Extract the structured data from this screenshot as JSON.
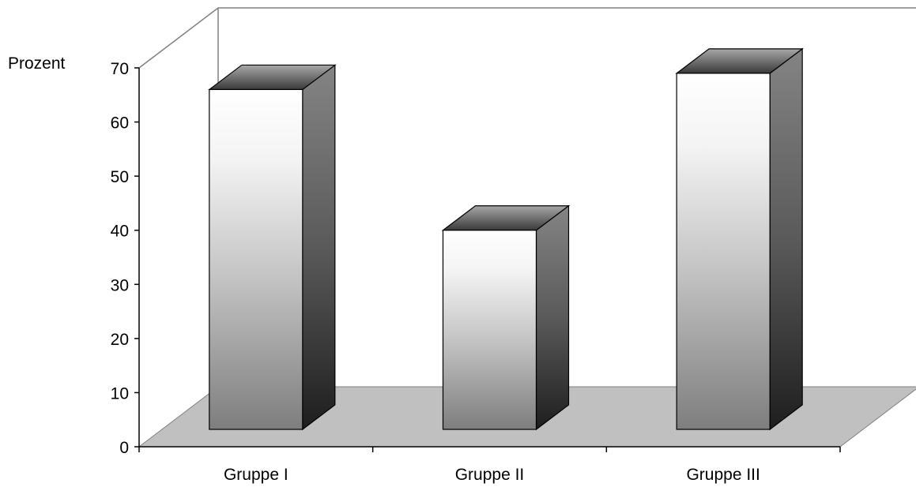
{
  "chart_data": {
    "type": "bar",
    "categories": [
      "Gruppe I",
      "Gruppe II",
      "Gruppe III"
    ],
    "values": [
      66,
      40,
      69
    ],
    "ylabel": "Prozent",
    "ylim": [
      0,
      70
    ],
    "yticks": [
      0,
      10,
      20,
      30,
      40,
      50,
      60,
      70
    ],
    "grid": false,
    "three_d": true
  },
  "colors": {
    "floor": "#c0c0c0",
    "bar_top": "#6e6e6e",
    "bar_side_light": "#808080",
    "bar_side_dark": "#202020",
    "bar_front_light": "#ffffff",
    "bar_front_dark": "#808080",
    "axis": "#808080"
  }
}
